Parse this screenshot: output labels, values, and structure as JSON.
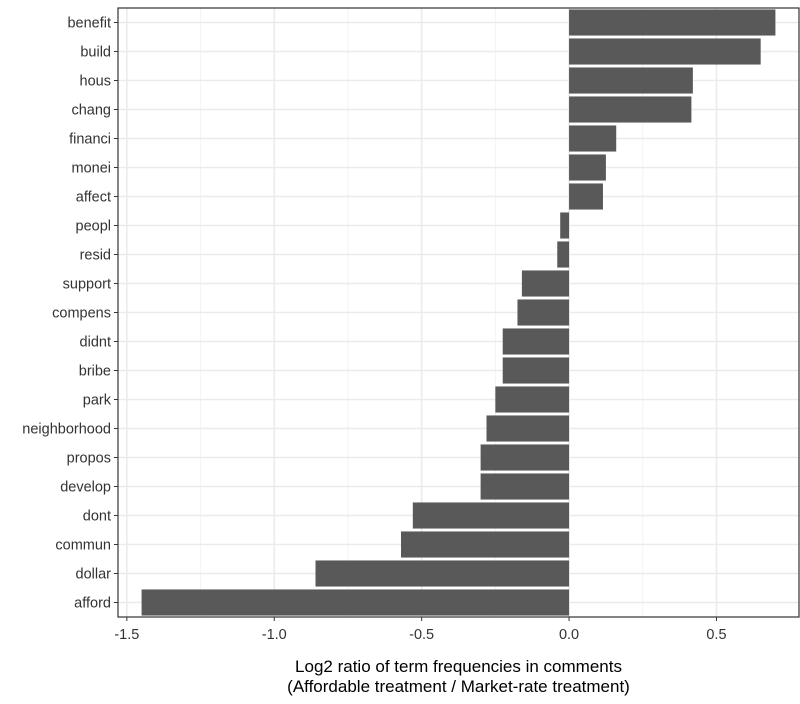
{
  "colors": {
    "bar": "#595959",
    "grid_major": "#ebebeb",
    "grid_minor": "#f3f3f3",
    "panel_border": "#333333",
    "text": "#333333",
    "axis_title": "#000000"
  },
  "chart_data": {
    "type": "bar",
    "orientation": "horizontal",
    "title": "",
    "xlabel": "Log2 ratio of term frequencies in comments",
    "xlabel_line2": "(Affordable treatment / Market-rate treatment)",
    "ylabel": "",
    "xlim": [
      -1.53,
      0.78
    ],
    "xticks": [
      -1.5,
      -1.0,
      -0.5,
      0.0,
      0.5
    ],
    "xtick_labels": [
      "-1.5",
      "-1.0",
      "-0.5",
      "0.0",
      "0.5"
    ],
    "grid": true,
    "legend": "none",
    "categories": [
      "benefit",
      "build",
      "hous",
      "chang",
      "financi",
      "monei",
      "affect",
      "peopl",
      "resid",
      "support",
      "compens",
      "didnt",
      "bribe",
      "park",
      "neighborhood",
      "propos",
      "develop",
      "dont",
      "commun",
      "dollar",
      "afford"
    ],
    "values": [
      0.7,
      0.65,
      0.42,
      0.415,
      0.16,
      0.125,
      0.115,
      -0.03,
      -0.04,
      -0.16,
      -0.175,
      -0.225,
      -0.225,
      -0.25,
      -0.28,
      -0.3,
      -0.3,
      -0.53,
      -0.57,
      -0.86,
      -1.45
    ]
  }
}
